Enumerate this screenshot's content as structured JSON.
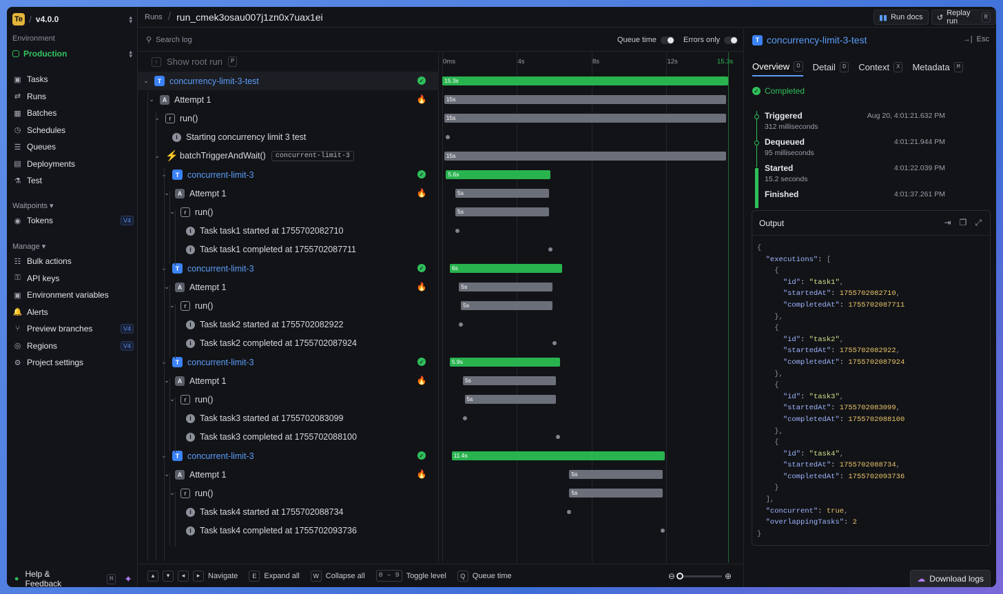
{
  "app": {
    "logo": "Te",
    "version": "v4.0.0"
  },
  "sidebar": {
    "env_label": "Environment",
    "env_name": "Production",
    "items": [
      {
        "label": "Tasks",
        "icon": "tasks-icon"
      },
      {
        "label": "Runs",
        "icon": "runs-icon"
      },
      {
        "label": "Batches",
        "icon": "batches-icon"
      },
      {
        "label": "Schedules",
        "icon": "clock-icon"
      },
      {
        "label": "Queues",
        "icon": "queues-icon"
      },
      {
        "label": "Deployments",
        "icon": "deployments-icon"
      },
      {
        "label": "Test",
        "icon": "beaker-icon"
      }
    ],
    "waitpoints_label": "Waitpoints ▾",
    "tokens": {
      "label": "Tokens",
      "badge": "V4"
    },
    "manage_label": "Manage ▾",
    "manage_items": [
      {
        "label": "Bulk actions",
        "badge": ""
      },
      {
        "label": "API keys",
        "badge": ""
      },
      {
        "label": "Environment variables",
        "badge": ""
      },
      {
        "label": "Alerts",
        "badge": ""
      },
      {
        "label": "Preview branches",
        "badge": "V4"
      },
      {
        "label": "Regions",
        "badge": "V4"
      },
      {
        "label": "Project settings",
        "badge": ""
      }
    ],
    "help": "Help & Feedback",
    "help_key": "H"
  },
  "topbar": {
    "crumb": "Runs",
    "run_id": "run_cmek3osau007j1zn0x7uax1ei",
    "docs": "Run docs",
    "replay": "Replay run",
    "replay_key": "R"
  },
  "log": {
    "search_placeholder": "Search log",
    "queue_time": "Queue time",
    "errors_only": "Errors only",
    "show_root": "Show root run",
    "show_root_key": "P"
  },
  "ticks": [
    "0ms",
    "4s",
    "8s",
    "12s",
    "15.3s"
  ],
  "tree": [
    {
      "label": "concurrency-limit-3-test",
      "type": "T",
      "blue": true,
      "status": "ok",
      "indent": 0,
      "chev": true,
      "bar": {
        "kind": "g",
        "start": 0,
        "end": 15.3,
        "text": "15.3s"
      }
    },
    {
      "label": "Attempt 1",
      "type": "A",
      "status": "fire",
      "indent": 1,
      "chev": true,
      "bar": {
        "kind": "gr",
        "start": 0.1,
        "end": 15.2,
        "text": "15s"
      }
    },
    {
      "label": "run()",
      "type": "r",
      "indent": 2,
      "chev": true,
      "bar": {
        "kind": "gr",
        "start": 0.1,
        "end": 15.2,
        "text": "15s"
      }
    },
    {
      "label": "Starting concurrency limit 3 test",
      "type": "i",
      "indent": 3,
      "dot": 0.3
    },
    {
      "label": "batchTriggerAndWait()",
      "type": "B",
      "tag": "concurrent-limit-3",
      "indent": 2,
      "chev": true,
      "bar": {
        "kind": "gr",
        "start": 0.1,
        "end": 15.2,
        "text": "15s"
      }
    },
    {
      "label": "concurrent-limit-3",
      "type": "T",
      "blue": true,
      "status": "ok",
      "indent": 3,
      "chev": true,
      "bar": {
        "kind": "g",
        "start": 0.2,
        "end": 5.8,
        "text": "5.6s"
      }
    },
    {
      "label": "Attempt 1",
      "type": "A",
      "status": "fire",
      "indent": 4,
      "chev": true,
      "bar": {
        "kind": "gr",
        "start": 0.7,
        "end": 5.7,
        "text": "5s"
      }
    },
    {
      "label": "run()",
      "type": "r",
      "indent": 5,
      "chev": true,
      "bar": {
        "kind": "gr",
        "start": 0.7,
        "end": 5.7,
        "text": "5s"
      }
    },
    {
      "label": "Task task1 started at 1755702082710",
      "type": "i",
      "indent": 6,
      "dot": 0.8
    },
    {
      "label": "Task task1 completed at 1755702087711",
      "type": "i",
      "indent": 6,
      "dot": 5.8
    },
    {
      "label": "concurrent-limit-3",
      "type": "T",
      "blue": true,
      "status": "ok",
      "indent": 3,
      "chev": true,
      "bar": {
        "kind": "g",
        "start": 0.4,
        "end": 6.4,
        "text": "6s"
      }
    },
    {
      "label": "Attempt 1",
      "type": "A",
      "status": "fire",
      "indent": 4,
      "chev": true,
      "bar": {
        "kind": "gr",
        "start": 0.9,
        "end": 5.9,
        "text": "5s"
      }
    },
    {
      "label": "run()",
      "type": "r",
      "indent": 5,
      "chev": true,
      "bar": {
        "kind": "gr",
        "start": 1.0,
        "end": 5.9,
        "text": "5s"
      }
    },
    {
      "label": "Task task2 started at 1755702082922",
      "type": "i",
      "indent": 6,
      "dot": 1.0
    },
    {
      "label": "Task task2 completed at 1755702087924",
      "type": "i",
      "indent": 6,
      "dot": 6.0
    },
    {
      "label": "concurrent-limit-3",
      "type": "T",
      "blue": true,
      "status": "ok",
      "indent": 3,
      "chev": true,
      "bar": {
        "kind": "g",
        "start": 0.4,
        "end": 6.3,
        "text": "5.9s"
      }
    },
    {
      "label": "Attempt 1",
      "type": "A",
      "status": "fire",
      "indent": 4,
      "chev": true,
      "bar": {
        "kind": "gr",
        "start": 1.1,
        "end": 6.1,
        "text": "5s"
      }
    },
    {
      "label": "run()",
      "type": "r",
      "indent": 5,
      "chev": true,
      "bar": {
        "kind": "gr",
        "start": 1.2,
        "end": 6.1,
        "text": "5s"
      }
    },
    {
      "label": "Task task3 started at 1755702083099",
      "type": "i",
      "indent": 6,
      "dot": 1.2
    },
    {
      "label": "Task task3 completed at 1755702088100",
      "type": "i",
      "indent": 6,
      "dot": 6.2
    },
    {
      "label": "concurrent-limit-3",
      "type": "T",
      "blue": true,
      "status": "ok",
      "indent": 3,
      "chev": true,
      "bar": {
        "kind": "g",
        "start": 0.5,
        "end": 11.9,
        "text": "11.4s"
      }
    },
    {
      "label": "Attempt 1",
      "type": "A",
      "status": "fire",
      "indent": 4,
      "chev": true,
      "bar": {
        "kind": "gr",
        "start": 6.8,
        "end": 11.8,
        "text": "5s"
      }
    },
    {
      "label": "run()",
      "type": "r",
      "indent": 5,
      "chev": true,
      "bar": {
        "kind": "gr",
        "start": 6.8,
        "end": 11.8,
        "text": "5s"
      }
    },
    {
      "label": "Task task4 started at 1755702088734",
      "type": "i",
      "indent": 6,
      "dot": 6.8
    },
    {
      "label": "Task task4 completed at 1755702093736",
      "type": "i",
      "indent": 6,
      "dot": 11.8
    }
  ],
  "bottom": {
    "navigate": "Navigate",
    "expand_key": "E",
    "expand": "Expand all",
    "collapse_key": "W",
    "collapse": "Collapse all",
    "level_keys": "0 – 9",
    "level": "Toggle level",
    "queue_key": "Q",
    "queue": "Queue time"
  },
  "panel": {
    "title": "concurrency-limit-3-test",
    "esc": "Esc",
    "tabs": [
      {
        "label": "Overview",
        "key": "O"
      },
      {
        "label": "Detail",
        "key": "D"
      },
      {
        "label": "Context",
        "key": "X"
      },
      {
        "label": "Metadata",
        "key": "M"
      }
    ],
    "status": "Completed",
    "events": [
      {
        "name": "Triggered",
        "time": "Aug 20, 4:01:21.632 PM",
        "sub": "312 milliseconds"
      },
      {
        "name": "Dequeued",
        "time": "4:01:21.944 PM",
        "sub": "95 milliseconds"
      },
      {
        "name": "Started",
        "time": "4:01:22.039 PM",
        "sub": "15.2 seconds"
      },
      {
        "name": "Finished",
        "time": "4:01:37.261 PM",
        "sub": ""
      }
    ],
    "output_label": "Output",
    "download": "Download logs"
  },
  "output_json": {
    "executions": [
      {
        "id": "task1",
        "startedAt": 1755702082710,
        "completedAt": 1755702087711
      },
      {
        "id": "task2",
        "startedAt": 1755702082922,
        "completedAt": 1755702087924
      },
      {
        "id": "task3",
        "startedAt": 1755702083099,
        "completedAt": 1755702088100
      },
      {
        "id": "task4",
        "startedAt": 1755702088734,
        "completedAt": 1755702093736
      }
    ],
    "concurrent": true,
    "overlappingTasks": 2
  }
}
